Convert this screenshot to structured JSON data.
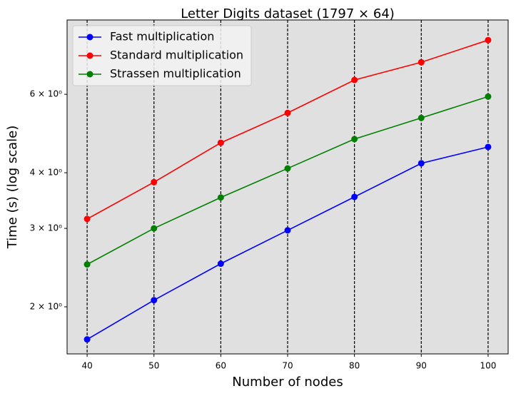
{
  "chart_data": {
    "type": "line",
    "title": "Letter Digits dataset (1797 × 64)",
    "x_label": "Number of nodes",
    "y_label": "Time (s) (log scale)",
    "x": [
      40,
      50,
      60,
      70,
      80,
      90,
      100
    ],
    "xlim": [
      37,
      103
    ],
    "xticks": [
      40,
      50,
      60,
      70,
      80,
      90,
      100
    ],
    "ylim": [
      1.568,
      8.81
    ],
    "yticks": [
      {
        "value": 2,
        "label": "2 × 10⁰"
      },
      {
        "value": 3,
        "label": "3 × 10⁰"
      },
      {
        "value": 4,
        "label": "4 × 10⁰"
      },
      {
        "value": 6,
        "label": "6 × 10⁰"
      }
    ],
    "log_y": true,
    "grid_x": true,
    "legend": "upper left",
    "series": [
      {
        "name": "Fast multiplication",
        "color": "#0000ff",
        "values": [
          1.69,
          2.07,
          2.5,
          2.97,
          3.53,
          4.2,
          4.57
        ]
      },
      {
        "name": "Standard multiplication",
        "color": "#ff0000",
        "values": [
          3.15,
          3.81,
          4.67,
          5.45,
          6.46,
          7.08,
          7.94
        ]
      },
      {
        "name": "Strassen multiplication",
        "color": "#008000",
        "values": [
          2.49,
          3.0,
          3.52,
          4.09,
          4.76,
          5.31,
          5.93
        ]
      }
    ]
  }
}
